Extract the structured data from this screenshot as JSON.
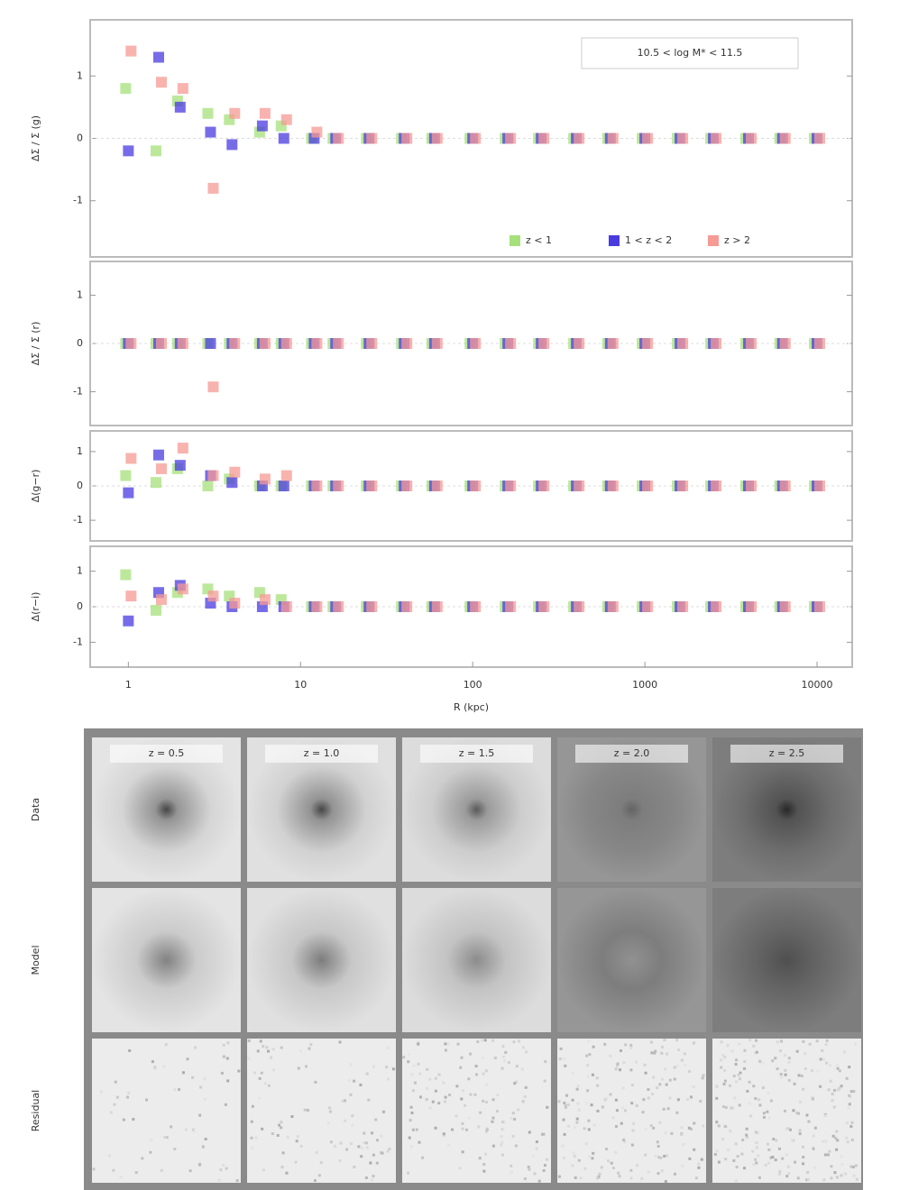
{
  "chart_data": [
    {
      "type": "scatter",
      "ylabel": "ΔΣ / Σ (g)",
      "annotation": "10.5 < log M* < 11.5",
      "legend": "lower right",
      "x": [
        1,
        1.5,
        2,
        3,
        4,
        6,
        8,
        12,
        16,
        25,
        40,
        60,
        100,
        160,
        250,
        400,
        630,
        1000,
        1600,
        2500,
        4000,
        6300,
        10000
      ],
      "xlim": [
        0.6,
        16000
      ],
      "xscale": "log",
      "ylim": [
        -1.9,
        1.9
      ],
      "yticks": [
        -1,
        0,
        1
      ],
      "series": [
        {
          "name": "z < 1",
          "color": "#a6e07a",
          "values": [
            0.8,
            -0.2,
            0.6,
            0.4,
            0.3,
            0.1,
            0.2,
            0,
            0,
            0,
            0,
            0,
            0,
            0,
            0,
            0,
            0,
            0,
            0,
            0,
            0,
            0,
            0
          ]
        },
        {
          "name": "1 < z < 2",
          "color": "#4a3be0",
          "values": [
            -0.2,
            1.3,
            0.5,
            0.1,
            -0.1,
            0.2,
            0,
            0,
            0,
            0,
            0,
            0,
            0,
            0,
            0,
            0,
            0,
            0,
            0,
            0,
            0,
            0,
            0
          ]
        },
        {
          "name": "z > 2",
          "color": "#f59a94",
          "values": [
            1.4,
            0.9,
            0.8,
            -0.8,
            0.4,
            0.4,
            0.3,
            0.1,
            0,
            0,
            0,
            0,
            0,
            0,
            0,
            0,
            0,
            0,
            0,
            0,
            0,
            0,
            0
          ]
        }
      ]
    },
    {
      "type": "scatter",
      "ylabel": "ΔΣ / Σ (r)",
      "x": [
        1,
        1.5,
        2,
        3,
        4,
        6,
        8,
        12,
        16,
        25,
        40,
        60,
        100,
        160,
        250,
        400,
        630,
        1000,
        1600,
        2500,
        4000,
        6300,
        10000
      ],
      "xlim": [
        0.6,
        16000
      ],
      "xscale": "log",
      "ylim": [
        -1.7,
        1.7
      ],
      "yticks": [
        -1,
        0,
        1
      ],
      "series": [
        {
          "name": "z < 1",
          "color": "#a6e07a",
          "values": [
            0,
            0,
            0,
            0,
            0,
            0,
            0,
            0,
            0,
            0,
            0,
            0,
            0,
            0,
            0,
            0,
            0,
            0,
            0,
            0,
            0,
            0,
            0
          ]
        },
        {
          "name": "1 < z < 2",
          "color": "#4a3be0",
          "values": [
            0,
            0,
            0,
            0,
            0,
            0,
            0,
            0,
            0,
            0,
            0,
            0,
            0,
            0,
            0,
            0,
            0,
            0,
            0,
            0,
            0,
            0,
            0
          ]
        },
        {
          "name": "z > 2",
          "color": "#f59a94",
          "values": [
            0,
            0,
            0,
            -0.9,
            0,
            0,
            0,
            0,
            0,
            0,
            0,
            0,
            0,
            0,
            0,
            0,
            0,
            0,
            0,
            0,
            0,
            0,
            0
          ]
        }
      ]
    },
    {
      "type": "scatter",
      "ylabel": "Δ(g−r)",
      "x": [
        1,
        1.5,
        2,
        3,
        4,
        6,
        8,
        12,
        16,
        25,
        40,
        60,
        100,
        160,
        250,
        400,
        630,
        1000,
        1600,
        2500,
        4000,
        6300,
        10000
      ],
      "xlim": [
        0.6,
        16000
      ],
      "xscale": "log",
      "ylim": [
        -1.6,
        1.6
      ],
      "yticks": [
        -1,
        0,
        1
      ],
      "series": [
        {
          "name": "z < 1",
          "color": "#a6e07a",
          "values": [
            0.3,
            0.1,
            0.5,
            0,
            0.2,
            0,
            0,
            0,
            0,
            0,
            0,
            0,
            0,
            0,
            0,
            0,
            0,
            0,
            0,
            0,
            0,
            0,
            0
          ]
        },
        {
          "name": "1 < z < 2",
          "color": "#4a3be0",
          "values": [
            -0.2,
            0.9,
            0.6,
            0.3,
            0.1,
            0,
            0,
            0,
            0,
            0,
            0,
            0,
            0,
            0,
            0,
            0,
            0,
            0,
            0,
            0,
            0,
            0,
            0
          ]
        },
        {
          "name": "z > 2",
          "color": "#f59a94",
          "values": [
            0.8,
            0.5,
            1.1,
            0.3,
            0.4,
            0.2,
            0.3,
            0,
            0,
            0,
            0,
            0,
            0,
            0,
            0,
            0,
            0,
            0,
            0,
            0,
            0,
            0,
            0
          ]
        }
      ]
    },
    {
      "type": "scatter",
      "ylabel": "Δ(r−i)",
      "xlabel": "R (kpc)",
      "x": [
        1,
        1.5,
        2,
        3,
        4,
        6,
        8,
        12,
        16,
        25,
        40,
        60,
        100,
        160,
        250,
        400,
        630,
        1000,
        1600,
        2500,
        4000,
        6300,
        10000
      ],
      "xlim": [
        0.6,
        16000
      ],
      "xscale": "log",
      "ylim": [
        -1.7,
        1.7
      ],
      "yticks": [
        -1,
        0,
        1
      ],
      "xticks": [
        1,
        10,
        100,
        1000,
        10000
      ],
      "series": [
        {
          "name": "z < 1",
          "color": "#a6e07a",
          "values": [
            0.9,
            -0.1,
            0.4,
            0.5,
            0.3,
            0.4,
            0.2,
            0,
            0,
            0,
            0,
            0,
            0,
            0,
            0,
            0,
            0,
            0,
            0,
            0,
            0,
            0,
            0
          ]
        },
        {
          "name": "1 < z < 2",
          "color": "#4a3be0",
          "values": [
            -0.4,
            0.4,
            0.6,
            0.1,
            0,
            0,
            0,
            0,
            0,
            0,
            0,
            0,
            0,
            0,
            0,
            0,
            0,
            0,
            0,
            0,
            0,
            0,
            0
          ]
        },
        {
          "name": "z > 2",
          "color": "#f59a94",
          "values": [
            0.3,
            0.2,
            0.5,
            0.3,
            0.1,
            0.2,
            0,
            0,
            0,
            0,
            0,
            0,
            0,
            0,
            0,
            0,
            0,
            0,
            0,
            0,
            0,
            0,
            0
          ]
        }
      ]
    }
  ],
  "image_grid": {
    "row_labels": [
      "Data",
      "Model",
      "Residual"
    ],
    "column_titles": [
      "z = 0.5",
      "z = 1.0",
      "z = 1.5",
      "z = 2.0",
      "z = 2.5"
    ]
  }
}
